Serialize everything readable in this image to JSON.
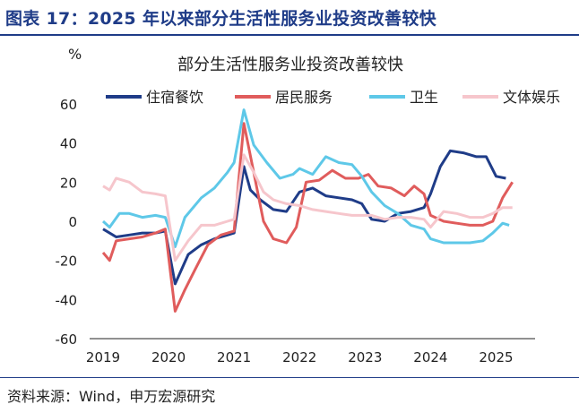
{
  "figure_title": "图表 17：2025 年以来部分生活性服务业投资改善较快",
  "source": "资料来源：Wind，申万宏源研究",
  "chart_data": {
    "type": "line",
    "title": "部分生活性服务业投资改善较快",
    "ylabel": "%",
    "ylim": [
      -60,
      60
    ],
    "yticks": [
      60,
      40,
      20,
      0,
      -20,
      -40,
      -60
    ],
    "xlim": [
      2019,
      2025.5
    ],
    "xticks": [
      2019,
      2020,
      2021,
      2022,
      2023,
      2024,
      2025
    ],
    "legend_position": "top",
    "grid": false,
    "series": [
      {
        "name": "住宿餐饮",
        "color": "#1f3c88",
        "points": [
          [
            2019.0,
            -4
          ],
          [
            2019.2,
            -8
          ],
          [
            2019.4,
            -7
          ],
          [
            2019.6,
            -6
          ],
          [
            2019.8,
            -6
          ],
          [
            2019.95,
            -5
          ],
          [
            2020.1,
            -32
          ],
          [
            2020.3,
            -17
          ],
          [
            2020.5,
            -12
          ],
          [
            2020.7,
            -9
          ],
          [
            2020.9,
            -7
          ],
          [
            2021.0,
            -6
          ],
          [
            2021.15,
            28
          ],
          [
            2021.25,
            16
          ],
          [
            2021.4,
            11
          ],
          [
            2021.6,
            6
          ],
          [
            2021.8,
            5
          ],
          [
            2022.0,
            15
          ],
          [
            2022.2,
            17
          ],
          [
            2022.4,
            13
          ],
          [
            2022.6,
            12
          ],
          [
            2022.8,
            11
          ],
          [
            2022.95,
            9
          ],
          [
            2023.1,
            1
          ],
          [
            2023.3,
            0
          ],
          [
            2023.5,
            4
          ],
          [
            2023.7,
            5
          ],
          [
            2023.9,
            7
          ],
          [
            2024.0,
            14
          ],
          [
            2024.15,
            28
          ],
          [
            2024.3,
            36
          ],
          [
            2024.5,
            35
          ],
          [
            2024.7,
            33
          ],
          [
            2024.85,
            33
          ],
          [
            2025.0,
            23
          ],
          [
            2025.15,
            22
          ]
        ]
      },
      {
        "name": "居民服务",
        "color": "#e05c5c",
        "points": [
          [
            2019.0,
            -16
          ],
          [
            2019.1,
            -20
          ],
          [
            2019.2,
            -10
          ],
          [
            2019.4,
            -9
          ],
          [
            2019.6,
            -8
          ],
          [
            2019.8,
            -6
          ],
          [
            2019.95,
            -4
          ],
          [
            2020.1,
            -46
          ],
          [
            2020.25,
            -35
          ],
          [
            2020.4,
            -25
          ],
          [
            2020.6,
            -12
          ],
          [
            2020.8,
            -7
          ],
          [
            2021.0,
            -5
          ],
          [
            2021.15,
            50
          ],
          [
            2021.3,
            25
          ],
          [
            2021.45,
            0
          ],
          [
            2021.6,
            -9
          ],
          [
            2021.8,
            -11
          ],
          [
            2021.95,
            -3
          ],
          [
            2022.1,
            20
          ],
          [
            2022.3,
            21
          ],
          [
            2022.5,
            26
          ],
          [
            2022.7,
            22
          ],
          [
            2022.9,
            22
          ],
          [
            2023.05,
            24
          ],
          [
            2023.2,
            18
          ],
          [
            2023.4,
            17
          ],
          [
            2023.6,
            13
          ],
          [
            2023.75,
            18
          ],
          [
            2023.9,
            14
          ],
          [
            2024.0,
            3
          ],
          [
            2024.2,
            0
          ],
          [
            2024.4,
            -1
          ],
          [
            2024.6,
            -2
          ],
          [
            2024.8,
            -2
          ],
          [
            2024.95,
            0
          ],
          [
            2025.1,
            12
          ],
          [
            2025.25,
            20
          ]
        ]
      },
      {
        "name": "卫生",
        "color": "#5ec8e8",
        "points": [
          [
            2019.0,
            0
          ],
          [
            2019.1,
            -3
          ],
          [
            2019.25,
            4
          ],
          [
            2019.4,
            4
          ],
          [
            2019.6,
            2
          ],
          [
            2019.8,
            3
          ],
          [
            2019.95,
            2
          ],
          [
            2020.1,
            -13
          ],
          [
            2020.25,
            2
          ],
          [
            2020.5,
            12
          ],
          [
            2020.7,
            17
          ],
          [
            2020.9,
            25
          ],
          [
            2021.0,
            30
          ],
          [
            2021.15,
            57
          ],
          [
            2021.3,
            39
          ],
          [
            2021.5,
            30
          ],
          [
            2021.7,
            22
          ],
          [
            2021.9,
            24
          ],
          [
            2022.0,
            27
          ],
          [
            2022.2,
            24
          ],
          [
            2022.4,
            33
          ],
          [
            2022.6,
            30
          ],
          [
            2022.8,
            29
          ],
          [
            2022.95,
            23
          ],
          [
            2023.1,
            15
          ],
          [
            2023.3,
            8
          ],
          [
            2023.5,
            4
          ],
          [
            2023.7,
            -2
          ],
          [
            2023.9,
            -4
          ],
          [
            2024.0,
            -9
          ],
          [
            2024.2,
            -11
          ],
          [
            2024.4,
            -11
          ],
          [
            2024.6,
            -11
          ],
          [
            2024.8,
            -10
          ],
          [
            2024.95,
            -6
          ],
          [
            2025.1,
            -1
          ],
          [
            2025.2,
            -2
          ]
        ]
      },
      {
        "name": "文体娱乐",
        "color": "#f6c6cc",
        "points": [
          [
            2019.0,
            18
          ],
          [
            2019.1,
            16
          ],
          [
            2019.2,
            22
          ],
          [
            2019.4,
            20
          ],
          [
            2019.6,
            15
          ],
          [
            2019.8,
            14
          ],
          [
            2019.95,
            13
          ],
          [
            2020.1,
            -20
          ],
          [
            2020.3,
            -10
          ],
          [
            2020.5,
            -2
          ],
          [
            2020.7,
            -2
          ],
          [
            2020.9,
            0
          ],
          [
            2021.0,
            1
          ],
          [
            2021.15,
            34
          ],
          [
            2021.3,
            25
          ],
          [
            2021.45,
            15
          ],
          [
            2021.6,
            11
          ],
          [
            2021.8,
            9
          ],
          [
            2022.0,
            8
          ],
          [
            2022.2,
            6
          ],
          [
            2022.4,
            5
          ],
          [
            2022.6,
            4
          ],
          [
            2022.8,
            3
          ],
          [
            2022.95,
            3
          ],
          [
            2023.1,
            3
          ],
          [
            2023.3,
            1
          ],
          [
            2023.5,
            2
          ],
          [
            2023.7,
            2
          ],
          [
            2023.9,
            1
          ],
          [
            2024.0,
            -3
          ],
          [
            2024.2,
            5
          ],
          [
            2024.4,
            4
          ],
          [
            2024.6,
            2
          ],
          [
            2024.8,
            2
          ],
          [
            2024.95,
            4
          ],
          [
            2025.1,
            7
          ],
          [
            2025.25,
            7
          ]
        ]
      }
    ]
  }
}
